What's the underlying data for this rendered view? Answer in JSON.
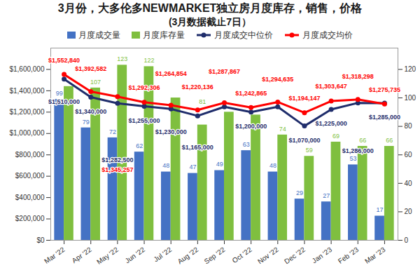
{
  "chart_data": {
    "type": "bar",
    "title": "3月份，大多伦多NEWMARKET独立房月度库存，销售，价格",
    "subtitle": "(3月数据截止7日）",
    "categories": [
      "Mar '22",
      "Apr '22",
      "May '22",
      "Jun '22",
      "Jul '22",
      "Aug '22",
      "Sep '22",
      "Oct '22",
      "Nov '22",
      "Dec '22",
      "Jan '23",
      "Feb '23",
      "Mar '23"
    ],
    "series": [
      {
        "name": "月度成交量",
        "type": "bar",
        "color": "#4472c4",
        "axis": "y2",
        "values": [
          99,
          79,
          72,
          62,
          48,
          47,
          49,
          63,
          48,
          29,
          27,
          53,
          17
        ]
      },
      {
        "name": "月度库存量",
        "type": "bar",
        "color": "#7fbf3f",
        "axis": "y2",
        "values": [
          108,
          107,
          123,
          122,
          100,
          81,
          90,
          88,
          74,
          59,
          69,
          66,
          66
        ],
        "value_labels": [
          null,
          "107",
          "123",
          "122",
          null,
          "81",
          null,
          null,
          "74",
          "59",
          "69",
          "66",
          "66"
        ]
      },
      {
        "name": "月度成交中位价",
        "type": "line",
        "color": "#1f2d6b",
        "marker": "circle",
        "values": [
          1510000,
          1340000,
          1282500,
          1255000,
          1230000,
          1165000,
          1250000,
          1200000,
          1250000,
          1070000,
          1225000,
          1286000,
          1285000
        ],
        "value_labels": [
          "$1,510,000",
          "$1,340,000",
          "$1,282,500",
          "$1,255,000",
          "$1,230,000",
          "$1,165,000",
          null,
          "$1,200,000",
          null,
          "$1,070,000",
          "$1,225,000",
          "$1,286,000",
          "$1,285,000"
        ]
      },
      {
        "name": "月度成交均价",
        "type": "line",
        "color": "#ff0000",
        "marker": "circle",
        "values": [
          1552840,
          1392582,
          1345257,
          1292306,
          1264854,
          1220136,
          1287867,
          1242865,
          1294635,
          1194147,
          1303647,
          1318298,
          1275735
        ],
        "value_labels": [
          "$1,552,840",
          "$1,392,582",
          "$1,345,257",
          "$1,292,306",
          "$1,264,854",
          "$1,220,136",
          "$1,287,867",
          "$1,242,865",
          "$1,294,635",
          "$1,194,147",
          "$1,303,647",
          "$1,318,298",
          "$1,275,735"
        ]
      }
    ],
    "ylim": [
      0,
      1800000
    ],
    "yticks": [
      {
        "value": 0,
        "label": "$0"
      },
      {
        "value": 200000,
        "label": "$200,000"
      },
      {
        "value": 400000,
        "label": "$400,000"
      },
      {
        "value": 600000,
        "label": "$600,000"
      },
      {
        "value": 800000,
        "label": "$800,000"
      },
      {
        "value": 1000000,
        "label": "$1,000,000"
      },
      {
        "value": 1200000,
        "label": "$1,200,000"
      },
      {
        "value": 1400000,
        "label": "$1,400,000"
      },
      {
        "value": 1600000,
        "label": "$1,600,000"
      }
    ],
    "y2lim": [
      0,
      135
    ],
    "y2ticks": [
      0,
      20,
      40,
      60,
      80,
      100,
      120
    ],
    "grid": false,
    "legend": "top",
    "data_labels": true
  }
}
